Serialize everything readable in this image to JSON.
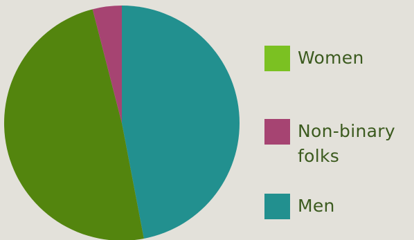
{
  "chart_data": {
    "type": "pie",
    "title": "",
    "slices": [
      {
        "label": "Men",
        "value": 47,
        "color": "#22908f"
      },
      {
        "label": "Women",
        "value": 49,
        "color": "#53850e"
      },
      {
        "label": "Non-binary folks",
        "value": 4,
        "color": "#a64472"
      }
    ],
    "legend": {
      "placement": "right",
      "items": [
        {
          "label": "Women",
          "color": "#7bc122"
        },
        {
          "label": "Non-binary folks",
          "label_line1": "Non-binary",
          "label_line2": "folks",
          "color": "#a64472"
        },
        {
          "label": "Men",
          "color": "#22908f"
        }
      ]
    }
  }
}
